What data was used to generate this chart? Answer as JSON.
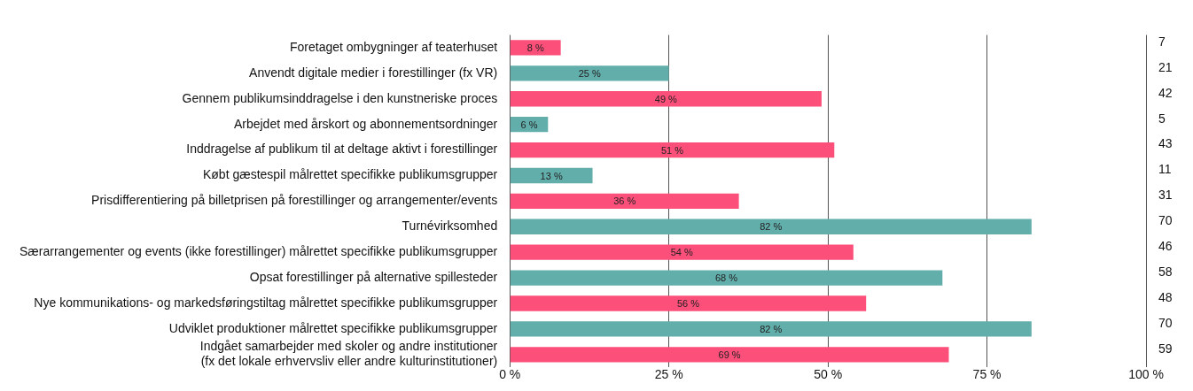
{
  "chart_data": {
    "type": "bar",
    "orientation": "horizontal",
    "categories": [
      "Foretaget ombygninger af teaterhuset",
      "Anvendt digitale medier i forestillinger (fx VR)",
      "Gennem publikumsinddragelse i den kunstneriske proces",
      "Arbejdet med årskort og abonnementsordninger",
      "Inddragelse af publikum til at deltage aktivt i forestillinger",
      "Købt gæstespil målrettet specifikke publikumsgrupper",
      "Prisdifferentiering på billetprisen på forestillinger og arrangementer/events",
      "Turnévirksomhed",
      "Særarrangementer og events (ikke forestillinger) målrettet specifikke publikumsgrupper",
      "Opsat forestillinger på alternative spillesteder",
      "Nye kommunikations- og markedsføringstiltag målrettet specifikke publikumsgrupper",
      "Udviklet produktioner målrettet specifikke publikumsgrupper",
      "Indgået samarbejder med skoler og andre institutioner\n(fx det lokale erhvervsliv eller andre kulturinstitutioner)"
    ],
    "values": [
      8,
      25,
      49,
      6,
      51,
      13,
      36,
      82,
      54,
      68,
      56,
      82,
      69
    ],
    "value_labels": [
      "8 %",
      "25 %",
      "49 %",
      "6 %",
      "51 %",
      "13 %",
      "36 %",
      "82 %",
      "54 %",
      "68 %",
      "56 %",
      "82 %",
      "69 %"
    ],
    "colors": [
      "#fc4f7a",
      "#62aeab",
      "#fc4f7a",
      "#62aeab",
      "#fc4f7a",
      "#62aeab",
      "#fc4f7a",
      "#62aeab",
      "#fc4f7a",
      "#62aeab",
      "#fc4f7a",
      "#62aeab",
      "#fc4f7a"
    ],
    "xlim": [
      0,
      100
    ],
    "xticks": [
      {
        "value": 0,
        "label": "0 %"
      },
      {
        "value": 25,
        "label": "25 %"
      },
      {
        "value": 50,
        "label": "50 %"
      },
      {
        "value": 75,
        "label": "75 %"
      },
      {
        "value": 100,
        "label": "100 %"
      }
    ],
    "grid": "x",
    "annotations": [
      "7",
      "21",
      "42",
      "5",
      "43",
      "11",
      "31",
      "70",
      "46",
      "58",
      "48",
      "70",
      "59"
    ]
  }
}
